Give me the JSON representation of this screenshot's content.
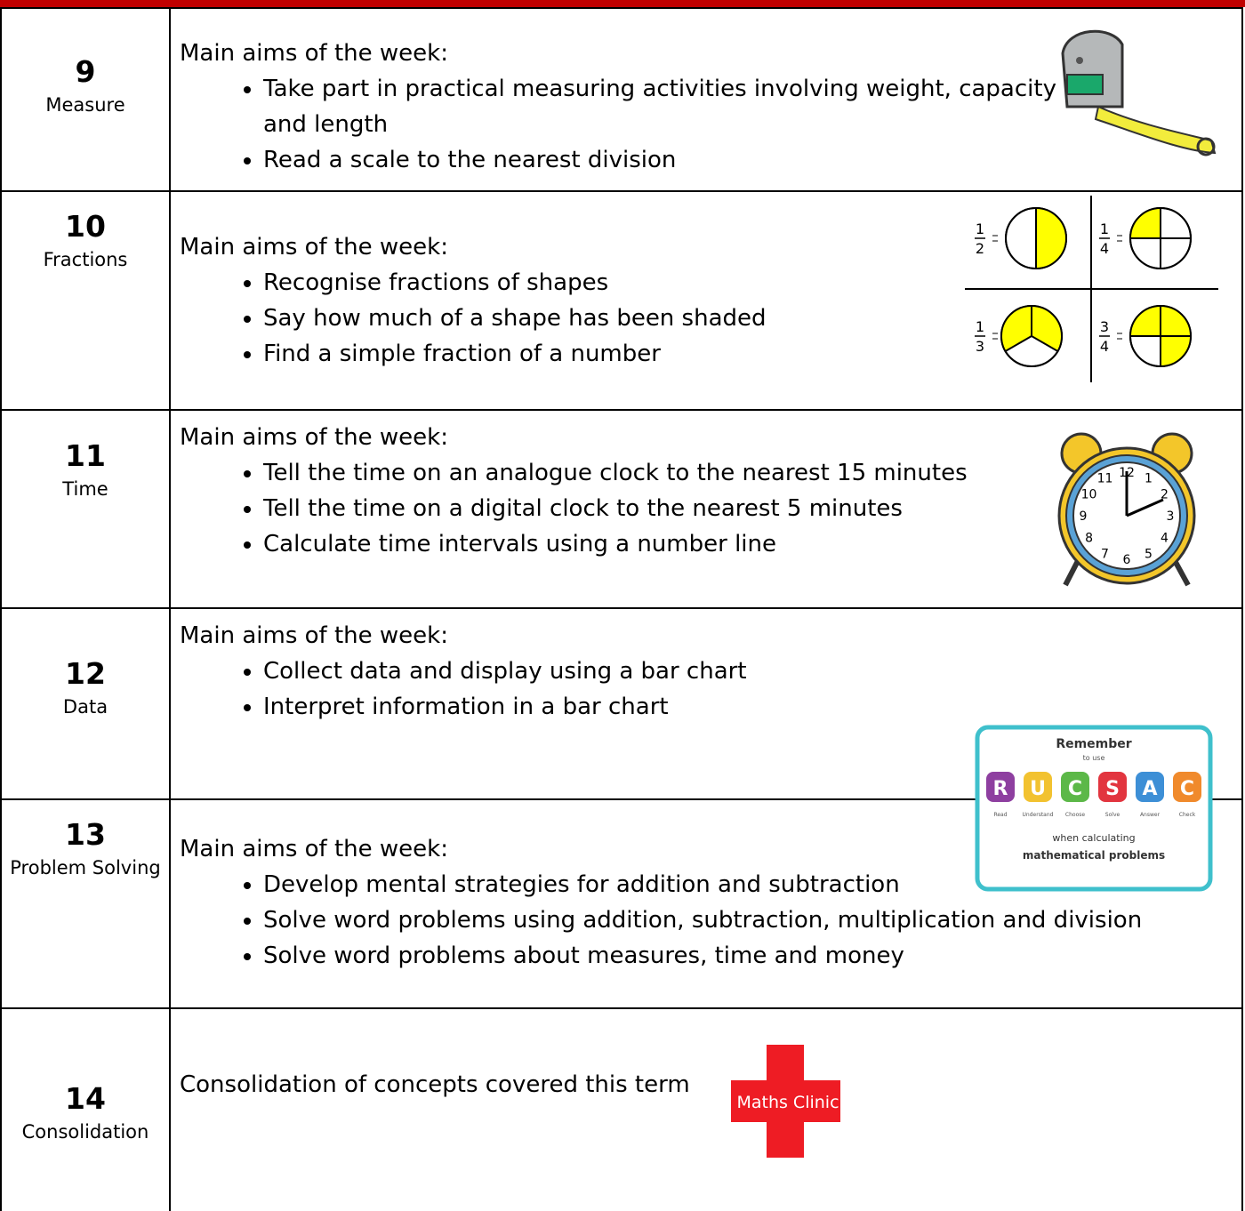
{
  "table": {
    "rows": [
      {
        "week": "9",
        "topic": "Measure",
        "intro": "Main aims of the week:",
        "aims": [
          "Take part in practical measuring activities involving weight, capacity and length",
          "Read a scale to the nearest division"
        ]
      },
      {
        "week": "10",
        "topic": "Fractions",
        "intro": "Main aims of the week:",
        "aims": [
          "Recognise fractions of shapes",
          "Say how much of a shape has been shaded",
          "Find a simple fraction of a number"
        ]
      },
      {
        "week": "11",
        "topic": "Time",
        "intro": "Main aims of the week:",
        "aims": [
          "Tell the time on an analogue clock to the nearest 15 minutes",
          "Tell the time on a digital clock to the nearest 5 minutes",
          "Calculate time intervals using a number line"
        ]
      },
      {
        "week": "12",
        "topic": "Data",
        "intro": "Main aims of the week:",
        "aims": [
          "Collect data and display using a bar chart",
          "Interpret information in a bar chart"
        ]
      },
      {
        "week": "13",
        "topic": "Problem Solving",
        "intro": "Main aims of the week:",
        "aims": [
          "Develop mental strategies for addition and subtraction",
          "Solve word problems using addition, subtraction, multiplication and division",
          "Solve word problems about measures, time and money"
        ]
      },
      {
        "week": "14",
        "topic": "Consolidation",
        "intro": "Consolidation of concepts covered this term"
      }
    ]
  },
  "images": {
    "fractions": [
      {
        "num": "1",
        "den": "2"
      },
      {
        "num": "1",
        "den": "4"
      },
      {
        "num": "1",
        "den": "3"
      },
      {
        "num": "3",
        "den": "4"
      }
    ],
    "clock": [
      "12",
      "1",
      "2",
      "3",
      "4",
      "5",
      "6",
      "7",
      "8",
      "9",
      "10",
      "11"
    ],
    "rucsac": {
      "title": "Remember",
      "subtitle": "to use",
      "letters": [
        "R",
        "U",
        "C",
        "S",
        "A",
        "C"
      ],
      "words": [
        "Read",
        "Understand",
        "Choose",
        "Solve",
        "Answer",
        "Check"
      ],
      "line1": "when calculating",
      "line2": "mathematical problems"
    },
    "clinic": "Maths Clinic"
  }
}
